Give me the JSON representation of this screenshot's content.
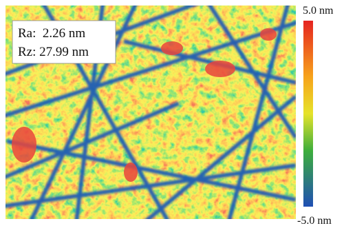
{
  "image": {
    "annotations": [
      "Ra:  2.26 nm",
      "Rz: 27.99 nm"
    ]
  },
  "colorbar": {
    "max_label": "5.0 nm",
    "min_label": "-5.0 nm"
  }
}
